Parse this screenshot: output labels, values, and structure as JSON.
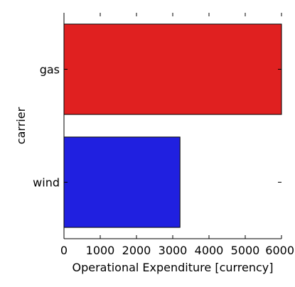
{
  "chart_data": {
    "type": "bar",
    "orientation": "horizontal",
    "categories": [
      "gas",
      "wind"
    ],
    "values": [
      6000,
      3200
    ],
    "colors": [
      "#e02020",
      "#2020e0"
    ],
    "title": "",
    "xlabel": "Operational Expenditure [currency]",
    "ylabel": "carrier",
    "xlim": [
      0,
      6000
    ],
    "xticks": [
      0,
      1000,
      2000,
      3000,
      4000,
      5000,
      6000
    ],
    "grid": false,
    "legend": "none"
  }
}
